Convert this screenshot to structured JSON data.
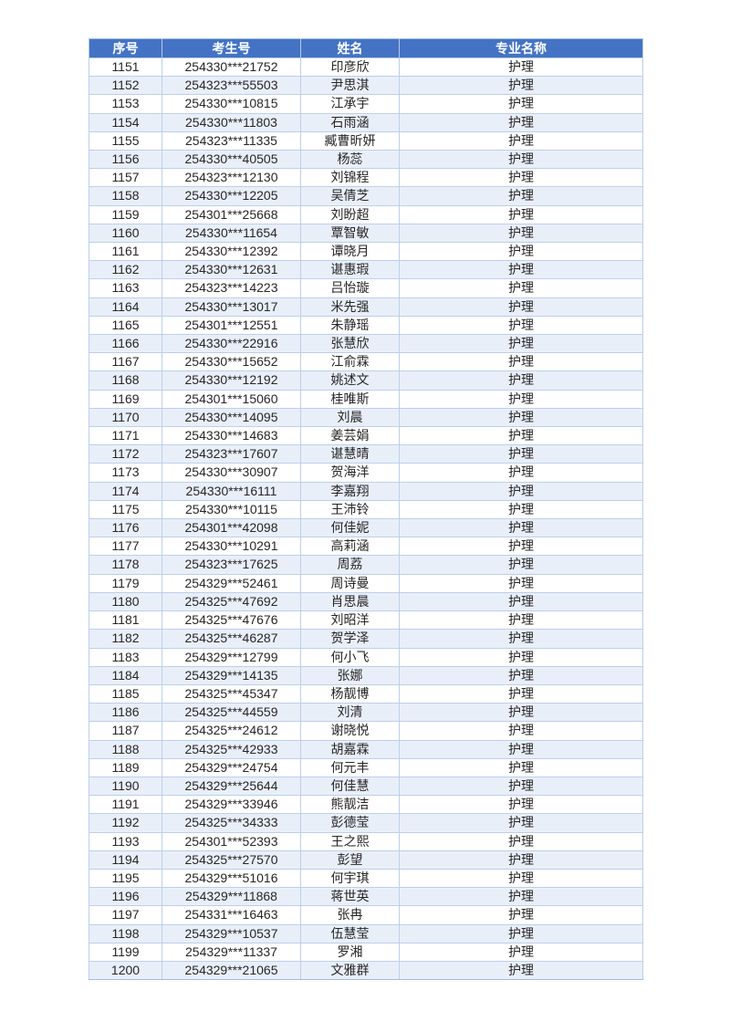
{
  "table": {
    "headers": [
      "序号",
      "考生号",
      "姓名",
      "专业名称"
    ],
    "header_bg": "#4473C5",
    "header_text_color": "#FFFFFF",
    "stripe_color": "#E9EFF9",
    "border_color": "#BDCFEA",
    "text_color": "#262626",
    "rows": [
      {
        "no": "1151",
        "exam_no": "254330***21752",
        "name": "印彦欣",
        "major": "护理"
      },
      {
        "no": "1152",
        "exam_no": "254323***55503",
        "name": "尹思淇",
        "major": "护理"
      },
      {
        "no": "1153",
        "exam_no": "254330***10815",
        "name": "江承宇",
        "major": "护理"
      },
      {
        "no": "1154",
        "exam_no": "254330***11803",
        "name": "石雨涵",
        "major": "护理"
      },
      {
        "no": "1155",
        "exam_no": "254323***11335",
        "name": "臧曹昕妍",
        "major": "护理"
      },
      {
        "no": "1156",
        "exam_no": "254330***40505",
        "name": "杨蕊",
        "major": "护理"
      },
      {
        "no": "1157",
        "exam_no": "254323***12130",
        "name": "刘锦程",
        "major": "护理"
      },
      {
        "no": "1158",
        "exam_no": "254330***12205",
        "name": "吴倩芝",
        "major": "护理"
      },
      {
        "no": "1159",
        "exam_no": "254301***25668",
        "name": "刘盼超",
        "major": "护理"
      },
      {
        "no": "1160",
        "exam_no": "254330***11654",
        "name": "覃智敏",
        "major": "护理"
      },
      {
        "no": "1161",
        "exam_no": "254330***12392",
        "name": "谭晓月",
        "major": "护理"
      },
      {
        "no": "1162",
        "exam_no": "254330***12631",
        "name": "谌惠瑕",
        "major": "护理"
      },
      {
        "no": "1163",
        "exam_no": "254323***14223",
        "name": "吕怡璇",
        "major": "护理"
      },
      {
        "no": "1164",
        "exam_no": "254330***13017",
        "name": "米先强",
        "major": "护理"
      },
      {
        "no": "1165",
        "exam_no": "254301***12551",
        "name": "朱静瑶",
        "major": "护理"
      },
      {
        "no": "1166",
        "exam_no": "254330***22916",
        "name": "张慧欣",
        "major": "护理"
      },
      {
        "no": "1167",
        "exam_no": "254330***15652",
        "name": "江俞霖",
        "major": "护理"
      },
      {
        "no": "1168",
        "exam_no": "254330***12192",
        "name": "姚述文",
        "major": "护理"
      },
      {
        "no": "1169",
        "exam_no": "254301***15060",
        "name": "桂唯斯",
        "major": "护理"
      },
      {
        "no": "1170",
        "exam_no": "254330***14095",
        "name": "刘晨",
        "major": "护理"
      },
      {
        "no": "1171",
        "exam_no": "254330***14683",
        "name": "姜芸娟",
        "major": "护理"
      },
      {
        "no": "1172",
        "exam_no": "254323***17607",
        "name": "谌慧晴",
        "major": "护理"
      },
      {
        "no": "1173",
        "exam_no": "254330***30907",
        "name": "贺海洋",
        "major": "护理"
      },
      {
        "no": "1174",
        "exam_no": "254330***16111",
        "name": "李嘉翔",
        "major": "护理"
      },
      {
        "no": "1175",
        "exam_no": "254330***10115",
        "name": "王沛铃",
        "major": "护理"
      },
      {
        "no": "1176",
        "exam_no": "254301***42098",
        "name": "何佳妮",
        "major": "护理"
      },
      {
        "no": "1177",
        "exam_no": "254330***10291",
        "name": "高莉涵",
        "major": "护理"
      },
      {
        "no": "1178",
        "exam_no": "254323***17625",
        "name": "周荔",
        "major": "护理"
      },
      {
        "no": "1179",
        "exam_no": "254329***52461",
        "name": "周诗曼",
        "major": "护理"
      },
      {
        "no": "1180",
        "exam_no": "254325***47692",
        "name": "肖思晨",
        "major": "护理"
      },
      {
        "no": "1181",
        "exam_no": "254325***47676",
        "name": "刘昭洋",
        "major": "护理"
      },
      {
        "no": "1182",
        "exam_no": "254325***46287",
        "name": "贺学泽",
        "major": "护理"
      },
      {
        "no": "1183",
        "exam_no": "254329***12799",
        "name": "何小飞",
        "major": "护理"
      },
      {
        "no": "1184",
        "exam_no": "254329***14135",
        "name": "张娜",
        "major": "护理"
      },
      {
        "no": "1185",
        "exam_no": "254325***45347",
        "name": "杨靓博",
        "major": "护理"
      },
      {
        "no": "1186",
        "exam_no": "254325***44559",
        "name": "刘清",
        "major": "护理"
      },
      {
        "no": "1187",
        "exam_no": "254325***24612",
        "name": "谢晓悦",
        "major": "护理"
      },
      {
        "no": "1188",
        "exam_no": "254325***42933",
        "name": "胡嘉霖",
        "major": "护理"
      },
      {
        "no": "1189",
        "exam_no": "254329***24754",
        "name": "何元丰",
        "major": "护理"
      },
      {
        "no": "1190",
        "exam_no": "254329***25644",
        "name": "何佳慧",
        "major": "护理"
      },
      {
        "no": "1191",
        "exam_no": "254329***33946",
        "name": "熊靓洁",
        "major": "护理"
      },
      {
        "no": "1192",
        "exam_no": "254325***34333",
        "name": "彭德莹",
        "major": "护理"
      },
      {
        "no": "1193",
        "exam_no": "254301***52393",
        "name": "王之熙",
        "major": "护理"
      },
      {
        "no": "1194",
        "exam_no": "254325***27570",
        "name": "彭望",
        "major": "护理"
      },
      {
        "no": "1195",
        "exam_no": "254329***51016",
        "name": "何宇琪",
        "major": "护理"
      },
      {
        "no": "1196",
        "exam_no": "254329***11868",
        "name": "蒋世英",
        "major": "护理"
      },
      {
        "no": "1197",
        "exam_no": "254331***16463",
        "name": "张冉",
        "major": "护理"
      },
      {
        "no": "1198",
        "exam_no": "254329***10537",
        "name": "伍慧莹",
        "major": "护理"
      },
      {
        "no": "1199",
        "exam_no": "254329***11337",
        "name": "罗湘",
        "major": "护理"
      },
      {
        "no": "1200",
        "exam_no": "254329***21065",
        "name": "文雅群",
        "major": "护理"
      }
    ]
  }
}
